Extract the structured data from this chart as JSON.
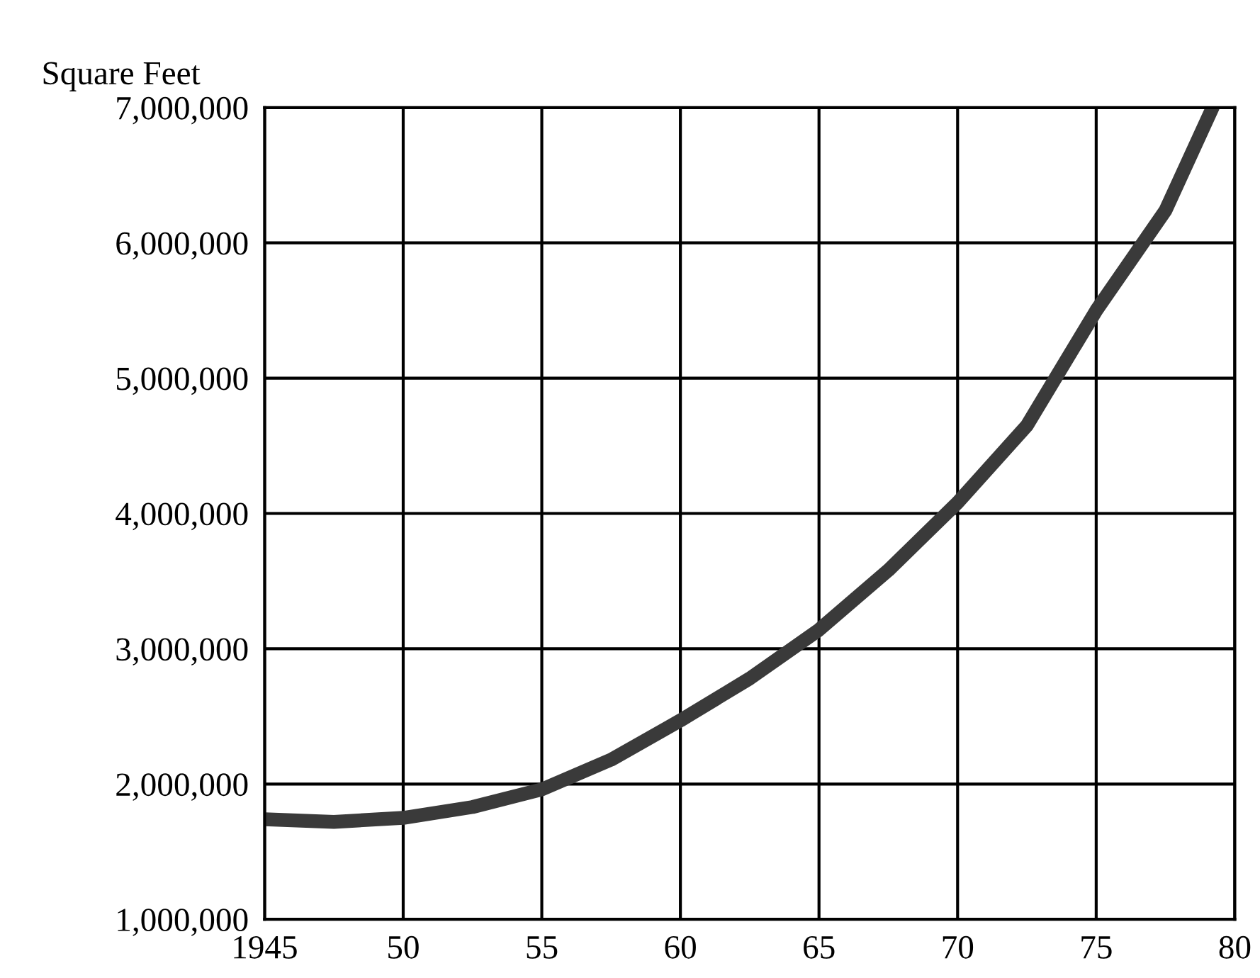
{
  "chart_data": {
    "type": "line",
    "ylabel": "Square Feet",
    "x": [
      1945,
      1947.5,
      1950,
      1952.5,
      1955,
      1957.5,
      1960,
      1962.5,
      1965,
      1967.5,
      1970,
      1972.5,
      1975,
      1977.5,
      1979.2
    ],
    "series": [
      {
        "color": "#3a3a3a",
        "values": [
          1740000,
          1720000,
          1750000,
          1830000,
          1960000,
          2180000,
          2470000,
          2780000,
          3140000,
          3580000,
          4080000,
          4650000,
          5500000,
          6240000,
          7000000
        ]
      }
    ],
    "xlim": [
      1945,
      1980
    ],
    "xticks": [
      {
        "value": 1945,
        "label": "1945"
      },
      {
        "value": 1950,
        "label": "50"
      },
      {
        "value": 1955,
        "label": "55"
      },
      {
        "value": 1960,
        "label": "60"
      },
      {
        "value": 1965,
        "label": "65"
      },
      {
        "value": 1970,
        "label": "70"
      },
      {
        "value": 1975,
        "label": "75"
      },
      {
        "value": 1980,
        "label": "80"
      }
    ],
    "ylim": [
      1000000,
      7000000
    ],
    "yticks": [
      {
        "value": 1000000,
        "label": "1,000,000"
      },
      {
        "value": 2000000,
        "label": "2,000,000"
      },
      {
        "value": 3000000,
        "label": "3,000,000"
      },
      {
        "value": 4000000,
        "label": "4,000,000"
      },
      {
        "value": 5000000,
        "label": "5,000,000"
      },
      {
        "value": 6000000,
        "label": "6,000,000"
      },
      {
        "value": 7000000,
        "label": "7,000,000"
      }
    ],
    "grid": true,
    "line_style": "solid",
    "marker": "none"
  }
}
